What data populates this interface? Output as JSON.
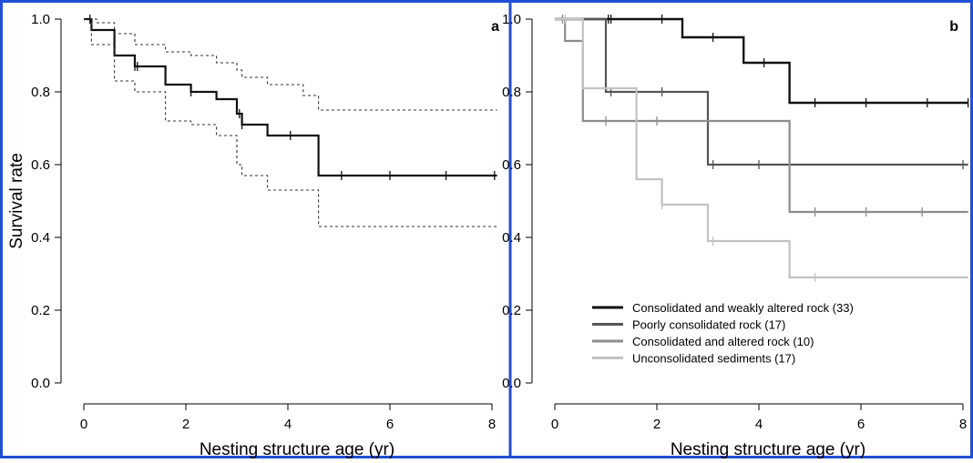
{
  "figure": {
    "frame_color": "#1f4fd6"
  },
  "chart_data": [
    {
      "type": "line",
      "panel_label": "a",
      "xlabel": "Nesting structure age (yr)",
      "ylabel": "Survival rate",
      "xlim": [
        0,
        8
      ],
      "ylim": [
        0,
        1
      ],
      "x_ticks": [
        "0",
        "2",
        "4",
        "6",
        "8"
      ],
      "y_ticks": [
        "0.0",
        "0.2",
        "0.4",
        "0.6",
        "0.8",
        "1.0"
      ],
      "grid": false,
      "series": [
        {
          "role": "estimate",
          "color": "#111111",
          "dash": "none",
          "width": 2.2,
          "steps": [
            [
              0,
              1.0
            ],
            [
              0.15,
              0.97
            ],
            [
              0.6,
              0.9
            ],
            [
              1.0,
              0.87
            ],
            [
              1.6,
              0.82
            ],
            [
              2.1,
              0.8
            ],
            [
              2.6,
              0.78
            ],
            [
              3.0,
              0.74
            ],
            [
              3.1,
              0.71
            ],
            [
              3.6,
              0.68
            ],
            [
              4.6,
              0.57
            ],
            [
              8.1,
              0.57
            ]
          ],
          "censor": [
            0.12,
            1.0,
            1.05,
            2.1,
            3.05,
            3.1,
            4.05,
            5.05,
            6.0,
            7.1,
            8.05
          ]
        },
        {
          "role": "upper-ci",
          "color": "#333333",
          "dash": "3,3",
          "width": 1.1,
          "steps": [
            [
              0,
              1.0
            ],
            [
              0.25,
              0.99
            ],
            [
              0.6,
              0.96
            ],
            [
              1.0,
              0.93
            ],
            [
              1.6,
              0.91
            ],
            [
              2.1,
              0.9
            ],
            [
              2.6,
              0.88
            ],
            [
              3.0,
              0.86
            ],
            [
              3.1,
              0.84
            ],
            [
              3.6,
              0.82
            ],
            [
              4.3,
              0.79
            ],
            [
              4.6,
              0.75
            ],
            [
              8.1,
              0.75
            ]
          ],
          "censor": []
        },
        {
          "role": "lower-ci",
          "color": "#333333",
          "dash": "3,3",
          "width": 1.1,
          "steps": [
            [
              0,
              1.0
            ],
            [
              0.15,
              0.93
            ],
            [
              0.6,
              0.83
            ],
            [
              1.0,
              0.8
            ],
            [
              1.6,
              0.72
            ],
            [
              2.1,
              0.71
            ],
            [
              2.6,
              0.68
            ],
            [
              3.0,
              0.6
            ],
            [
              3.1,
              0.57
            ],
            [
              3.6,
              0.53
            ],
            [
              4.6,
              0.43
            ],
            [
              8.1,
              0.43
            ]
          ],
          "censor": []
        }
      ]
    },
    {
      "type": "line",
      "panel_label": "b",
      "xlabel": "Nesting structure age (yr)",
      "ylabel": "",
      "xlim": [
        0,
        8
      ],
      "ylim": [
        0,
        1
      ],
      "x_ticks": [
        "0",
        "2",
        "4",
        "6",
        "8"
      ],
      "y_ticks": [
        "0.0",
        "0.2",
        "0.4",
        "0.6",
        "0.8",
        "1.0"
      ],
      "grid": false,
      "legend_position": "bottom-left",
      "series": [
        {
          "name": "Consolidated and weakly altered rock (33)",
          "color": "#111111",
          "width": 2.4,
          "steps": [
            [
              0,
              1.0
            ],
            [
              2.5,
              0.95
            ],
            [
              3.7,
              0.88
            ],
            [
              4.6,
              0.77
            ],
            [
              8.1,
              0.77
            ]
          ],
          "censor": [
            1.05,
            1.1,
            2.1,
            3.1,
            4.1,
            5.1,
            6.1,
            7.3,
            8.1
          ]
        },
        {
          "name": "Poorly consolidated rock (17)",
          "color": "#555555",
          "width": 2.2,
          "steps": [
            [
              0,
              1.0
            ],
            [
              1.0,
              0.8
            ],
            [
              3.0,
              0.6
            ],
            [
              8.1,
              0.6
            ]
          ],
          "censor": [
            1.1,
            2.1,
            3.1,
            4.0,
            4.6,
            8.0
          ]
        },
        {
          "name": "Consolidated and altered rock (10)",
          "color": "#8c8c8c",
          "width": 2.2,
          "steps": [
            [
              0,
              1.0
            ],
            [
              0.2,
              0.94
            ],
            [
              0.55,
              0.72
            ],
            [
              3.0,
              0.72
            ],
            [
              4.6,
              0.47
            ],
            [
              8.1,
              0.47
            ]
          ],
          "censor": [
            0.15,
            1.0,
            2.0,
            5.1,
            6.1,
            7.2
          ]
        },
        {
          "name": "Unconsolidated sediments (17)",
          "color": "#c2c2c2",
          "width": 2.2,
          "steps": [
            [
              0,
              1.0
            ],
            [
              0.55,
              0.81
            ],
            [
              1.6,
              0.56
            ],
            [
              2.1,
              0.49
            ],
            [
              3.0,
              0.39
            ],
            [
              4.6,
              0.29
            ],
            [
              8.1,
              0.29
            ]
          ],
          "censor": [
            0.2,
            2.1,
            3.1,
            5.1
          ]
        }
      ]
    }
  ]
}
